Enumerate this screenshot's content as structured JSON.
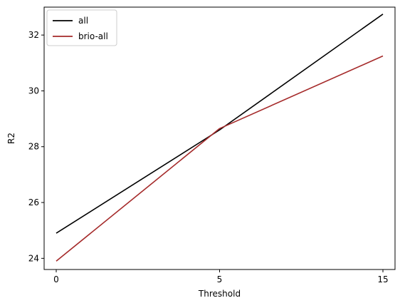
{
  "chart_data": {
    "type": "line",
    "xlabel": "Threshold",
    "ylabel": "R2",
    "x_ticks": [
      "0",
      "5",
      "15"
    ],
    "y_ticks": [
      24,
      26,
      28,
      30,
      32
    ],
    "ylim": [
      23.6,
      33.0
    ],
    "grid": false,
    "legend_position": "top-left",
    "series": [
      {
        "name": "all",
        "color": "#000000",
        "values": [
          24.9,
          28.6,
          32.75
        ]
      },
      {
        "name": "brio-all",
        "color": "#a52a2a",
        "values": [
          23.9,
          28.65,
          31.25
        ]
      }
    ]
  }
}
